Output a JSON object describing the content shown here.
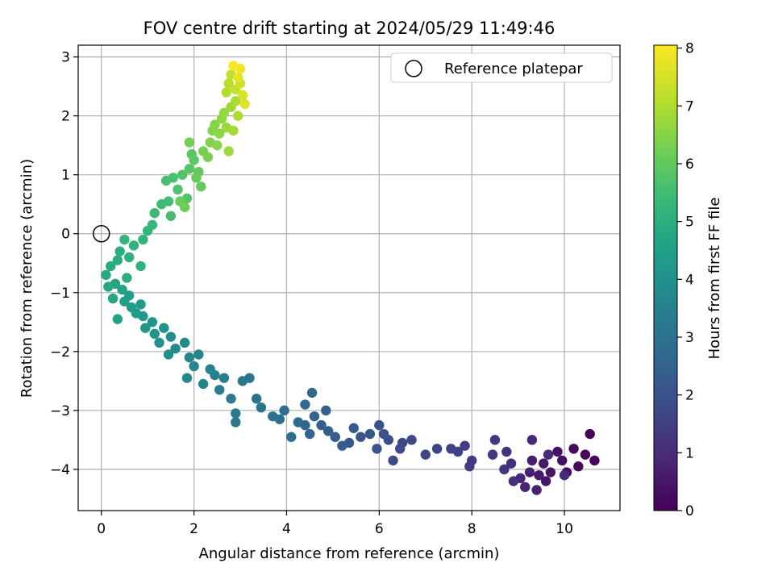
{
  "chart_data": {
    "type": "scatter",
    "title": "FOV centre drift starting at 2024/05/29 11:49:46",
    "xlabel": "Angular distance from reference (arcmin)",
    "ylabel": "Rotation from reference (arcmin)",
    "xlim": [
      -0.5,
      11.2
    ],
    "ylim": [
      -4.7,
      3.2
    ],
    "xticks": [
      0,
      2,
      4,
      6,
      8,
      10
    ],
    "yticks": [
      -4,
      -3,
      -2,
      -1,
      0,
      1,
      2,
      3
    ],
    "grid": true,
    "legend": {
      "position": "top-right",
      "entries": [
        "Reference platepar"
      ]
    },
    "reference_point": {
      "x": 0,
      "y": 0
    },
    "colorbar": {
      "label": "Hours from first FF file",
      "range": [
        0,
        8.05
      ],
      "ticks": [
        0,
        1,
        2,
        3,
        4,
        5,
        6,
        7,
        8
      ],
      "colormap": "viridis"
    },
    "colors": {
      "viridis": [
        "#440154",
        "#482878",
        "#3e4a89",
        "#31688e",
        "#26828e",
        "#1f9e89",
        "#35b779",
        "#6ece58",
        "#b5de2b",
        "#fde725"
      ],
      "grid": "#b0b0b0"
    },
    "points": [
      [
        10.55,
        -3.4,
        0.05
      ],
      [
        10.65,
        -3.85,
        0.1
      ],
      [
        10.45,
        -3.75,
        0.15
      ],
      [
        10.3,
        -3.95,
        0.2
      ],
      [
        10.2,
        -3.65,
        0.25
      ],
      [
        10.05,
        -4.05,
        0.3
      ],
      [
        9.95,
        -3.85,
        0.35
      ],
      [
        9.85,
        -3.7,
        0.4
      ],
      [
        9.7,
        -4.05,
        0.45
      ],
      [
        9.6,
        -4.2,
        0.5
      ],
      [
        9.55,
        -3.9,
        0.55
      ],
      [
        9.45,
        -4.1,
        0.6
      ],
      [
        9.3,
        -3.85,
        0.65
      ],
      [
        9.4,
        -4.35,
        0.7
      ],
      [
        9.25,
        -4.05,
        0.75
      ],
      [
        9.15,
        -4.3,
        0.8
      ],
      [
        9.05,
        -4.15,
        0.85
      ],
      [
        9.3,
        -3.5,
        0.9
      ],
      [
        9.65,
        -3.75,
        0.95
      ],
      [
        10.0,
        -4.1,
        0.98
      ],
      [
        8.9,
        -4.2,
        1.05
      ],
      [
        8.85,
        -3.9,
        1.1
      ],
      [
        8.75,
        -3.7,
        1.15
      ],
      [
        8.7,
        -4.0,
        1.2
      ],
      [
        8.5,
        -3.5,
        1.25
      ],
      [
        8.45,
        -3.75,
        1.3
      ],
      [
        8.0,
        -3.85,
        1.35
      ],
      [
        7.95,
        -3.95,
        1.4
      ],
      [
        7.85,
        -3.6,
        1.45
      ],
      [
        7.7,
        -3.7,
        1.5
      ],
      [
        7.55,
        -3.65,
        1.55
      ],
      [
        7.25,
        -3.65,
        1.6
      ],
      [
        7.0,
        -3.75,
        1.65
      ],
      [
        6.7,
        -3.5,
        1.7
      ],
      [
        6.5,
        -3.55,
        1.75
      ],
      [
        6.45,
        -3.65,
        1.8
      ],
      [
        6.3,
        -3.85,
        1.85
      ],
      [
        6.2,
        -3.5,
        1.9
      ],
      [
        6.1,
        -3.4,
        1.95
      ],
      [
        6.0,
        -3.25,
        2.0
      ],
      [
        5.95,
        -3.65,
        2.05
      ],
      [
        5.8,
        -3.4,
        2.1
      ],
      [
        5.6,
        -3.45,
        2.15
      ],
      [
        5.45,
        -3.3,
        2.2
      ],
      [
        5.35,
        -3.55,
        2.25
      ],
      [
        5.2,
        -3.6,
        2.3
      ],
      [
        5.05,
        -3.45,
        2.35
      ],
      [
        4.9,
        -3.35,
        2.4
      ],
      [
        4.85,
        -3.0,
        2.45
      ],
      [
        4.75,
        -3.25,
        2.5
      ],
      [
        4.6,
        -3.1,
        2.55
      ],
      [
        4.5,
        -3.4,
        2.6
      ],
      [
        4.4,
        -3.25,
        2.65
      ],
      [
        4.55,
        -2.7,
        2.7
      ],
      [
        4.4,
        -2.9,
        2.75
      ],
      [
        4.25,
        -3.2,
        2.8
      ],
      [
        4.1,
        -3.45,
        2.85
      ],
      [
        3.95,
        -3.0,
        2.9
      ],
      [
        3.85,
        -3.15,
        2.95
      ],
      [
        3.7,
        -3.1,
        3.0
      ],
      [
        3.45,
        -2.95,
        3.05
      ],
      [
        3.35,
        -2.8,
        3.1
      ],
      [
        3.2,
        -2.45,
        3.15
      ],
      [
        3.05,
        -2.5,
        3.2
      ],
      [
        2.9,
        -3.2,
        3.25
      ],
      [
        2.9,
        -3.05,
        3.3
      ],
      [
        2.8,
        -2.8,
        3.35
      ],
      [
        2.65,
        -2.45,
        3.4
      ],
      [
        2.55,
        -2.65,
        3.45
      ],
      [
        2.45,
        -2.4,
        3.5
      ],
      [
        2.35,
        -2.3,
        3.55
      ],
      [
        2.2,
        -2.55,
        3.6
      ],
      [
        2.1,
        -2.05,
        3.65
      ],
      [
        2.0,
        -2.25,
        3.7
      ],
      [
        1.9,
        -2.1,
        3.75
      ],
      [
        1.85,
        -2.45,
        3.8
      ],
      [
        1.8,
        -1.85,
        3.85
      ],
      [
        1.6,
        -1.95,
        3.9
      ],
      [
        1.5,
        -1.75,
        3.95
      ],
      [
        1.45,
        -2.05,
        4.0
      ],
      [
        1.35,
        -1.6,
        4.05
      ],
      [
        1.25,
        -1.85,
        4.1
      ],
      [
        1.15,
        -1.7,
        4.15
      ],
      [
        1.1,
        -1.5,
        4.2
      ],
      [
        0.95,
        -1.6,
        4.25
      ],
      [
        0.9,
        -1.4,
        4.3
      ],
      [
        0.85,
        -1.2,
        4.35
      ],
      [
        0.75,
        -1.35,
        4.4
      ],
      [
        0.65,
        -1.25,
        4.45
      ],
      [
        0.6,
        -1.05,
        4.5
      ],
      [
        0.5,
        -1.15,
        4.55
      ],
      [
        0.45,
        -0.95,
        4.6
      ],
      [
        0.35,
        -1.45,
        4.65
      ],
      [
        0.3,
        -0.85,
        4.7
      ],
      [
        0.25,
        -1.1,
        4.75
      ],
      [
        0.15,
        -0.9,
        4.8
      ],
      [
        0.1,
        -0.7,
        4.85
      ],
      [
        0.2,
        -0.55,
        4.9
      ],
      [
        0.35,
        -0.45,
        4.95
      ],
      [
        0.55,
        -0.75,
        5.0
      ],
      [
        0.4,
        -0.3,
        5.05
      ],
      [
        0.6,
        -0.4,
        5.1
      ],
      [
        0.7,
        -0.2,
        5.15
      ],
      [
        0.85,
        -0.55,
        5.2
      ],
      [
        0.5,
        -0.1,
        5.25
      ],
      [
        0.9,
        -0.1,
        5.3
      ],
      [
        1.0,
        0.05,
        5.35
      ],
      [
        1.1,
        0.15,
        5.4
      ],
      [
        1.15,
        0.35,
        5.45
      ],
      [
        1.3,
        0.5,
        5.5
      ],
      [
        1.45,
        0.55,
        5.55
      ],
      [
        1.5,
        0.3,
        5.6
      ],
      [
        1.4,
        0.9,
        5.65
      ],
      [
        1.55,
        0.95,
        5.7
      ],
      [
        1.65,
        0.75,
        5.75
      ],
      [
        1.75,
        1.0,
        5.8
      ],
      [
        1.85,
        0.6,
        5.85
      ],
      [
        1.9,
        1.1,
        5.9
      ],
      [
        1.95,
        1.35,
        5.95
      ],
      [
        2.0,
        1.25,
        6.0
      ],
      [
        2.1,
        1.05,
        6.05
      ],
      [
        2.15,
        0.8,
        6.1
      ],
      [
        2.05,
        0.95,
        6.15
      ],
      [
        1.7,
        0.55,
        6.2
      ],
      [
        1.8,
        0.45,
        6.25
      ],
      [
        1.9,
        1.55,
        6.3
      ],
      [
        2.2,
        1.4,
        6.35
      ],
      [
        2.3,
        1.3,
        6.4
      ],
      [
        2.35,
        1.55,
        6.45
      ],
      [
        2.4,
        1.75,
        6.5
      ],
      [
        2.45,
        1.85,
        6.55
      ],
      [
        2.5,
        1.5,
        6.6
      ],
      [
        2.55,
        1.7,
        6.65
      ],
      [
        2.6,
        1.95,
        6.7
      ],
      [
        2.65,
        2.05,
        6.75
      ],
      [
        2.7,
        1.8,
        6.8
      ],
      [
        2.75,
        1.4,
        6.85
      ],
      [
        2.8,
        2.15,
        6.9
      ],
      [
        2.85,
        1.75,
        6.95
      ],
      [
        2.9,
        2.25,
        7.0
      ],
      [
        2.95,
        2.0,
        7.05
      ],
      [
        2.7,
        2.4,
        7.1
      ],
      [
        2.75,
        2.55,
        7.2
      ],
      [
        2.8,
        2.7,
        7.3
      ],
      [
        2.9,
        2.45,
        7.35
      ],
      [
        3.0,
        2.55,
        7.45
      ],
      [
        3.05,
        2.35,
        7.55
      ],
      [
        3.1,
        2.2,
        7.65
      ],
      [
        2.95,
        2.65,
        7.75
      ],
      [
        3.0,
        2.8,
        7.85
      ],
      [
        2.85,
        2.85,
        8.0
      ]
    ]
  }
}
